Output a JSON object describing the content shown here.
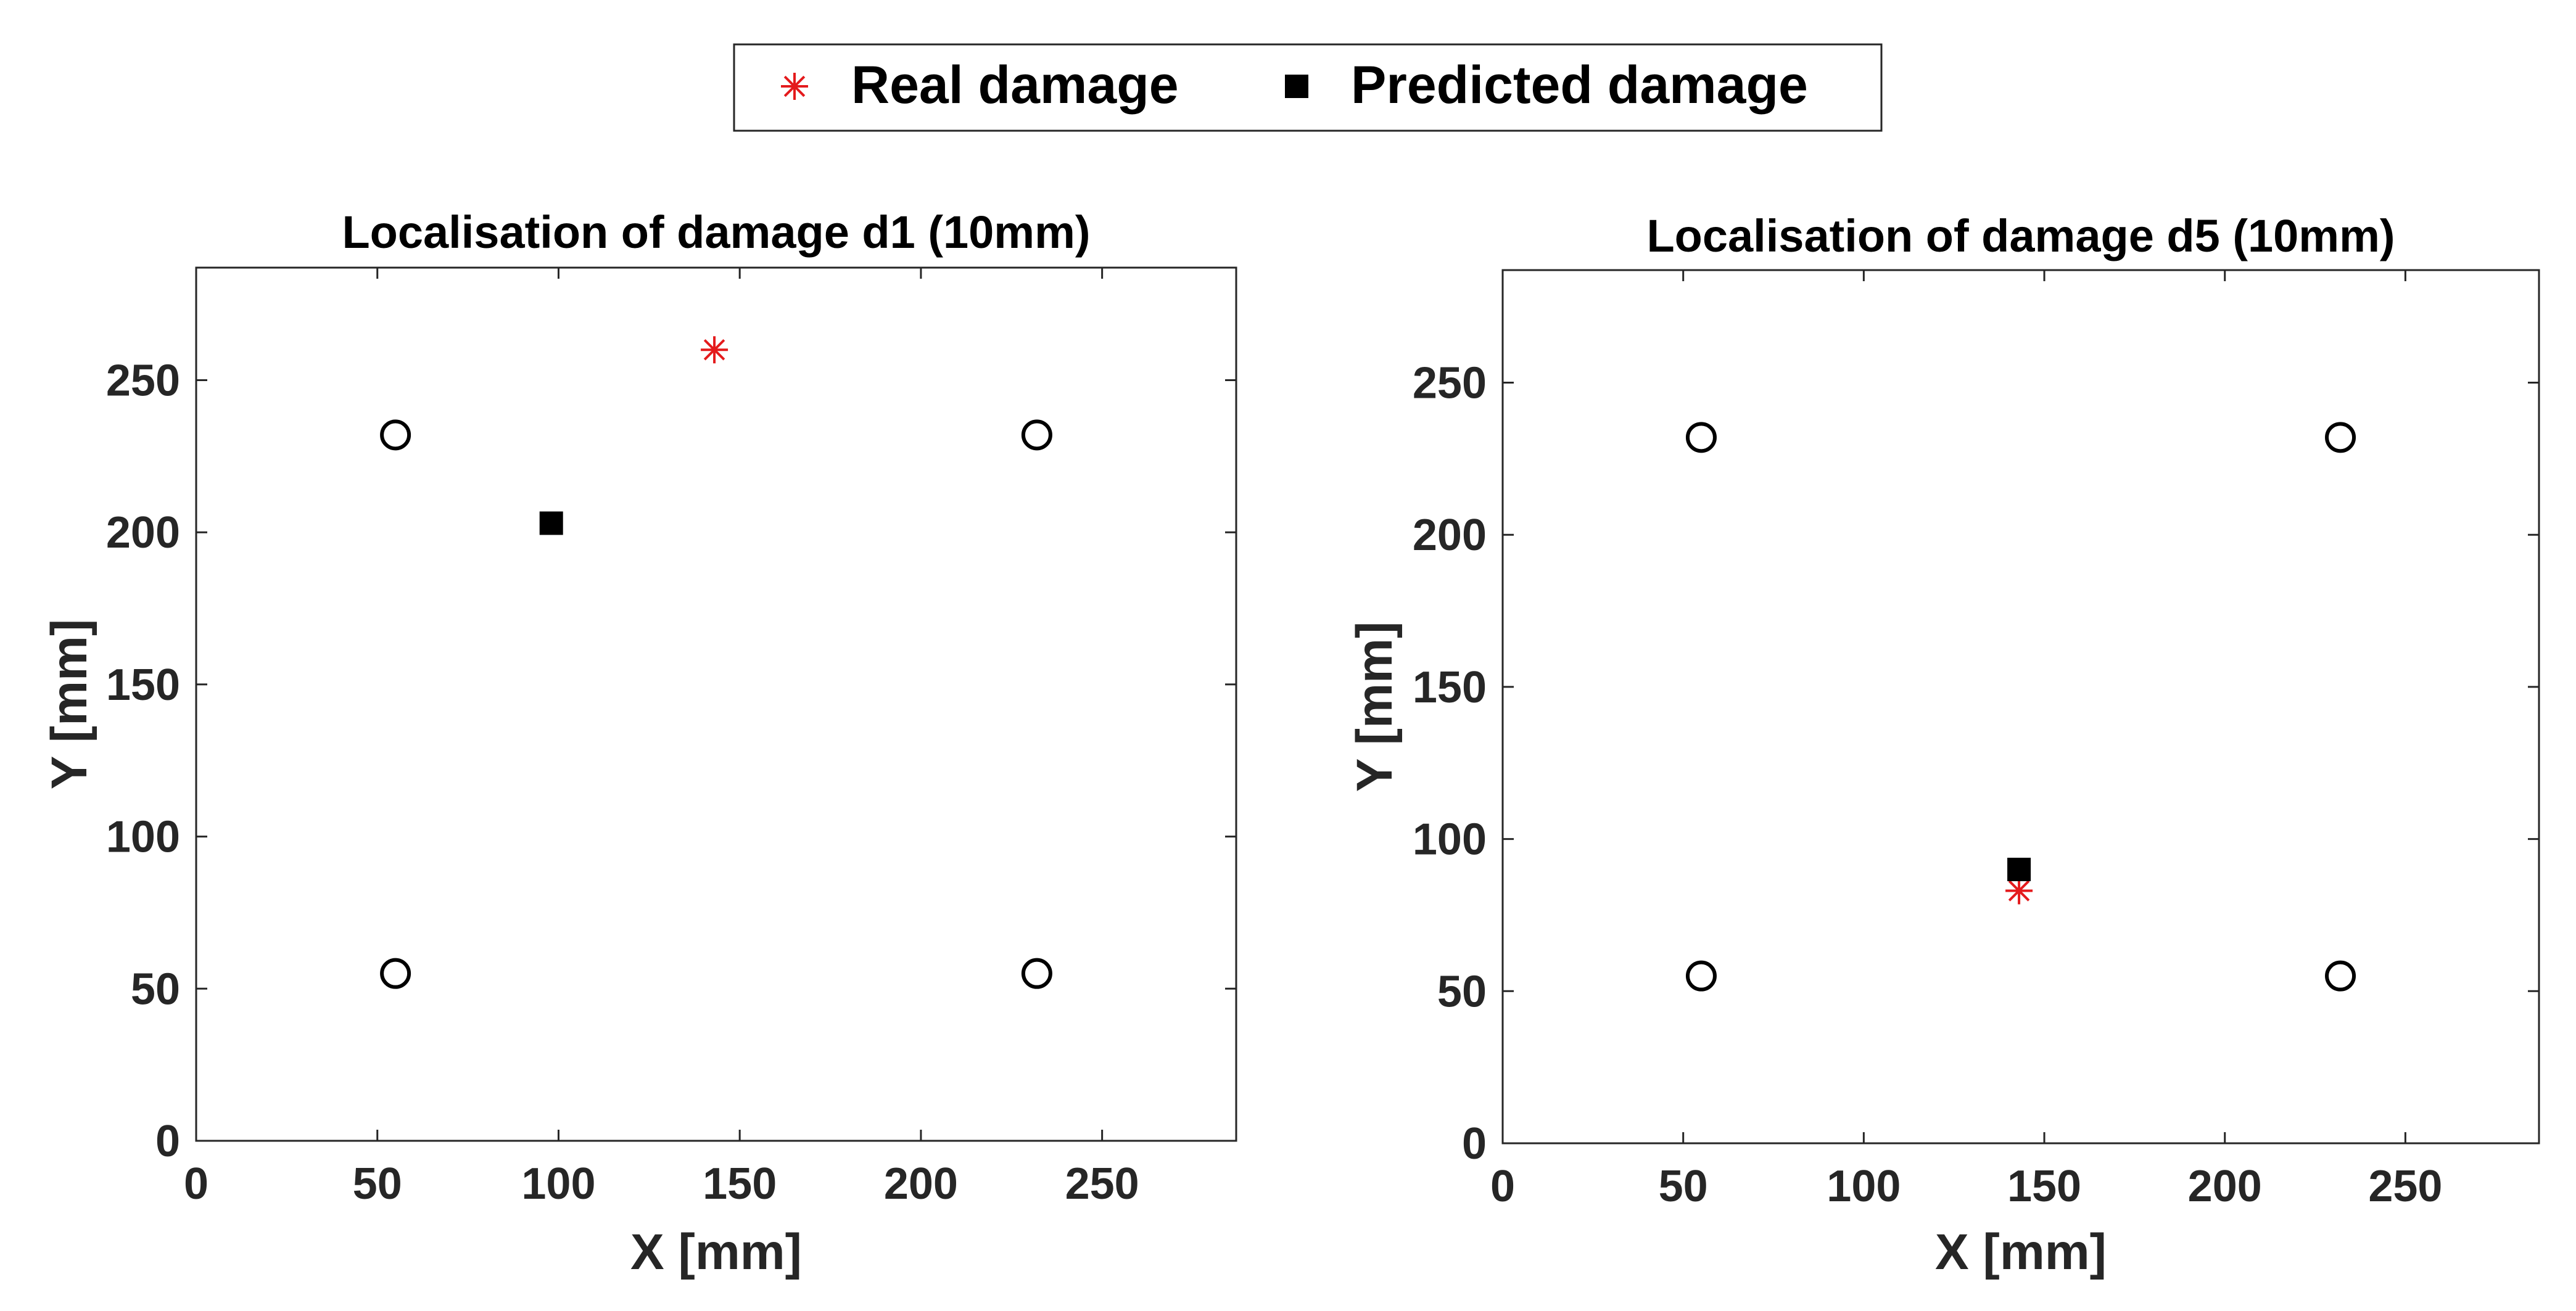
{
  "colors": {
    "real_damage": "#e41a1c",
    "predicted_damage": "#000000",
    "sensor": "#000000",
    "axis": "#262626"
  },
  "legend": {
    "placement": "top-center",
    "entries": [
      {
        "label": "Real damage",
        "marker": "asterisk",
        "color": "#e41a1c"
      },
      {
        "label": "Predicted damage",
        "marker": "filled-square",
        "color": "#000000"
      }
    ]
  },
  "chart_data": [
    {
      "type": "scatter",
      "title": "Localisation of damage d1 (10mm)",
      "xlabel": "X [mm]",
      "ylabel": "Y [mm]",
      "xlim": [
        0,
        287
      ],
      "ylim": [
        0,
        287
      ],
      "xticks": [
        0,
        50,
        100,
        150,
        200,
        250
      ],
      "yticks": [
        0,
        50,
        100,
        150,
        200,
        250
      ],
      "grid": false,
      "series": [
        {
          "name": "Real damage",
          "marker": "asterisk",
          "points": [
            [
              143,
              260
            ]
          ]
        },
        {
          "name": "Predicted damage",
          "marker": "filled-square",
          "points": [
            [
              98,
              203
            ]
          ]
        },
        {
          "marker": "open-circle",
          "points": [
            [
              55,
              232
            ],
            [
              232,
              232
            ],
            [
              55,
              55
            ],
            [
              232,
              55
            ]
          ]
        }
      ]
    },
    {
      "type": "scatter",
      "title": "Localisation of damage d5 (10mm)",
      "xlabel": "X [mm]",
      "ylabel": "Y [mm]",
      "xlim": [
        0,
        287
      ],
      "ylim": [
        0,
        287
      ],
      "xticks": [
        0,
        50,
        100,
        150,
        200,
        250
      ],
      "yticks": [
        0,
        50,
        100,
        150,
        200,
        250
      ],
      "grid": false,
      "series": [
        {
          "name": "Real damage",
          "marker": "asterisk",
          "points": [
            [
              143,
              83
            ]
          ]
        },
        {
          "name": "Predicted damage",
          "marker": "filled-square",
          "points": [
            [
              143,
              90
            ]
          ]
        },
        {
          "marker": "open-circle",
          "points": [
            [
              55,
              232
            ],
            [
              232,
              232
            ],
            [
              55,
              55
            ],
            [
              232,
              55
            ]
          ]
        }
      ]
    }
  ]
}
